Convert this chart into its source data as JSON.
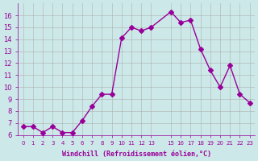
{
  "x": [
    0,
    1,
    2,
    3,
    4,
    5,
    6,
    7,
    8,
    9,
    10,
    11,
    12,
    13,
    15,
    16,
    17,
    18,
    19,
    20,
    21,
    22,
    23
  ],
  "y": [
    6.7,
    6.7,
    6.2,
    6.7,
    6.2,
    6.2,
    7.2,
    8.4,
    9.4,
    9.4,
    14.1,
    15.0,
    14.7,
    15.0,
    16.3,
    15.4,
    15.6,
    13.2,
    11.4,
    10.0,
    11.8,
    9.4,
    8.7
  ],
  "line_color": "#990099",
  "marker": "D",
  "marker_size": 3,
  "background_color": "#cce8e8",
  "grid_color": "#aaaaaa",
  "xlabel": "Windchill (Refroidissement éolien,°C)",
  "xlabel_color": "#990099",
  "tick_color": "#990099",
  "ylim": [
    6,
    17
  ],
  "xlim": [
    -0.5,
    23.5
  ],
  "yticks": [
    6,
    7,
    8,
    9,
    10,
    11,
    12,
    13,
    14,
    15,
    16
  ],
  "xticks": [
    0,
    1,
    2,
    3,
    4,
    5,
    6,
    7,
    8,
    9,
    10,
    11,
    12,
    13,
    15,
    16,
    17,
    18,
    19,
    20,
    21,
    22,
    23
  ]
}
